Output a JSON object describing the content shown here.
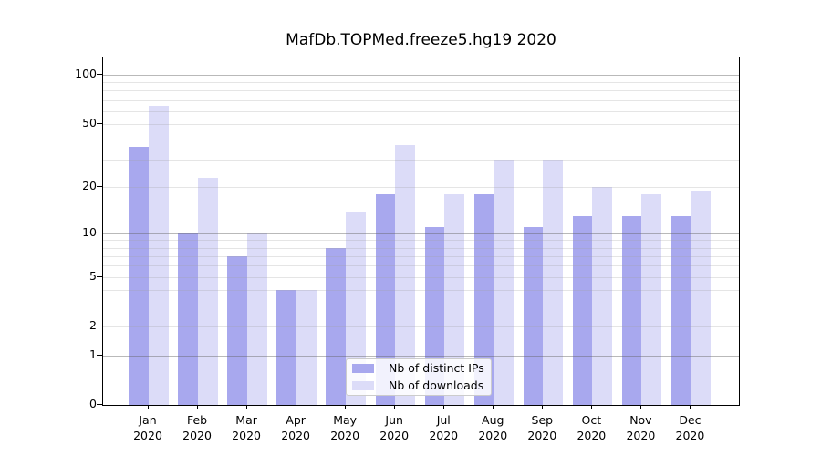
{
  "chart_data": {
    "type": "bar",
    "title": "MafDb.TOPMed.freeze5.hg19 2020",
    "y_scale": "pseudo-log (log10(1+y))",
    "grid": true,
    "legend_position": "lower center inside plot",
    "categories": [
      "Jan",
      "Feb",
      "Mar",
      "Apr",
      "May",
      "Jun",
      "Jul",
      "Aug",
      "Sep",
      "Oct",
      "Nov",
      "Dec"
    ],
    "x_year_suffix": "2020",
    "series": [
      {
        "name": "Nb of distinct IPs",
        "color": "#a8a8ee",
        "values": [
          36,
          10,
          7,
          4,
          8,
          18,
          11,
          18,
          11,
          13,
          13,
          13
        ]
      },
      {
        "name": "Nb of downloads",
        "color": "#dcdcf8",
        "values": [
          65,
          23,
          10,
          4,
          14,
          37,
          18,
          30,
          30,
          20,
          18,
          19
        ]
      }
    ],
    "y_ticks": [
      0,
      1,
      2,
      5,
      10,
      20,
      50,
      100
    ],
    "gridlines_major": [
      1,
      10,
      100
    ],
    "gridlines_minor": [
      2,
      3,
      4,
      5,
      6,
      7,
      8,
      9,
      20,
      30,
      40,
      50,
      60,
      70,
      80,
      90
    ],
    "ylim": [
      0,
      128
    ],
    "xlabel": "",
    "ylabel": ""
  }
}
